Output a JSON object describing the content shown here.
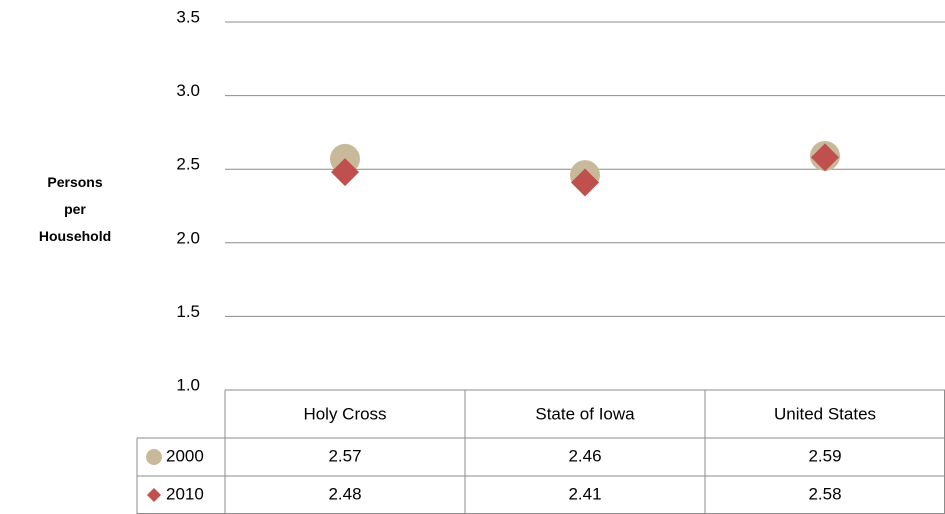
{
  "chart_data": {
    "type": "scatter",
    "y_label": "Persons per Household",
    "categories": [
      "Holy Cross",
      "State of Iowa",
      "United States"
    ],
    "series": [
      {
        "name": "2000",
        "color": "#c8b99a",
        "marker": "circle",
        "values": [
          2.57,
          2.46,
          2.59
        ]
      },
      {
        "name": "2010",
        "color": "#c0504d",
        "marker": "diamond",
        "values": [
          2.48,
          2.41,
          2.58
        ]
      }
    ],
    "ylim": [
      1,
      3.5
    ],
    "yticks": [
      {
        "value": 1,
        "label": "1.0"
      },
      1.5,
      {
        "value": 2,
        "label": "2.0"
      },
      2.5,
      {
        "value": 3,
        "label": "3.0"
      },
      3.5
    ],
    "grid": true,
    "data_table": true
  }
}
